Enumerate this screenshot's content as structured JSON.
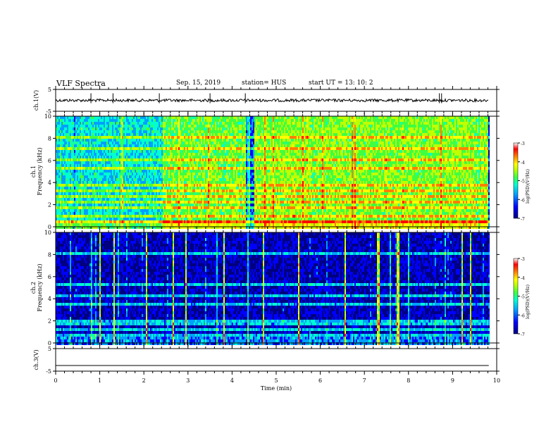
{
  "header": {
    "title": "VLF Spectra",
    "date": "Sep. 15, 2019",
    "station": "station= HUS",
    "start": "start  UT  =   13: 10: 2"
  },
  "colors": {
    "cmap": [
      "#000080",
      "#0000ff",
      "#00a0ff",
      "#00ffd0",
      "#40ff40",
      "#c0ff00",
      "#ffff00",
      "#ff8000",
      "#ff0000",
      "#ffffff"
    ]
  },
  "chart_data": [
    {
      "type": "line",
      "panel": "ch1-waveform",
      "ylabel": "ch.1(V)",
      "ylim": [
        -5,
        5
      ],
      "yticks": [
        "5",
        "-5"
      ],
      "xlim": [
        0,
        10
      ],
      "series": [
        {
          "values_note": "noise",
          "mean": 0,
          "amplitude": 0.8
        }
      ],
      "spikes_min": [
        0.8,
        1.3,
        2.35,
        3.5,
        4.3,
        8.7,
        8.75
      ]
    },
    {
      "type": "heatmap",
      "panel": "ch1-spectrogram",
      "ylabel": "ch.1\nFrequency (kHz)",
      "ylim": [
        0,
        10
      ],
      "yticks": [
        "0",
        "2",
        "4",
        "6",
        "8",
        "10"
      ],
      "xlim": [
        0,
        10
      ],
      "colorbar": {
        "label": "log(PSD)(V²/Hz)",
        "range": [
          -7,
          -3
        ],
        "ticks": [
          "-3",
          "-4",
          "-5",
          "-6",
          "-7"
        ]
      },
      "segments": [
        {
          "x": [
            0,
            2.4
          ],
          "level": -5.6
        },
        {
          "x": [
            2.4,
            4.3
          ],
          "level": -4.9
        },
        {
          "x": [
            4.3,
            4.5
          ],
          "level": -6.2
        },
        {
          "x": [
            4.5,
            9.8
          ],
          "level": -4.8
        }
      ],
      "bands_khz": [
        0.4,
        1.0,
        1.6,
        2.2,
        2.8,
        3.3,
        3.8,
        4.4,
        5.2,
        6.0,
        7.0,
        8.0
      ]
    },
    {
      "type": "heatmap",
      "panel": "ch2-spectrogram",
      "ylabel": "ch.2\nFrequency (kHz)",
      "ylim": [
        0,
        10
      ],
      "yticks": [
        "0",
        "2",
        "4",
        "6",
        "8",
        "10"
      ],
      "xlim": [
        0,
        10
      ],
      "colorbar": {
        "label": "log(PSD)(V²/Hz)",
        "range": [
          -7,
          -3
        ],
        "ticks": [
          "-3",
          "-4",
          "-5",
          "-6",
          "-7"
        ]
      },
      "segments": [
        {
          "x": [
            0,
            9.8
          ],
          "level": -6.6
        }
      ],
      "bands_khz": [
        0.6,
        1.2,
        1.6,
        2.0,
        3.6,
        4.3,
        5.2,
        8.0
      ],
      "sferics_min": [
        1.0,
        1.3,
        2.05,
        2.65,
        2.95,
        3.8,
        4.7,
        5.5,
        6.55,
        7.3,
        7.75,
        9.2,
        9.4
      ]
    },
    {
      "type": "line",
      "panel": "ch3-waveform",
      "ylabel": "ch.3(V)",
      "ylim": [
        -5,
        5
      ],
      "yticks": [
        "5",
        "-5"
      ],
      "xlim": [
        0,
        10
      ],
      "series": [
        {
          "values_note": "flat",
          "mean": -2.5
        }
      ]
    }
  ],
  "xaxis": {
    "label": "Time  (min)",
    "ticks": [
      "0",
      "1",
      "2",
      "3",
      "4",
      "5",
      "6",
      "7",
      "8",
      "9",
      "10"
    ]
  }
}
